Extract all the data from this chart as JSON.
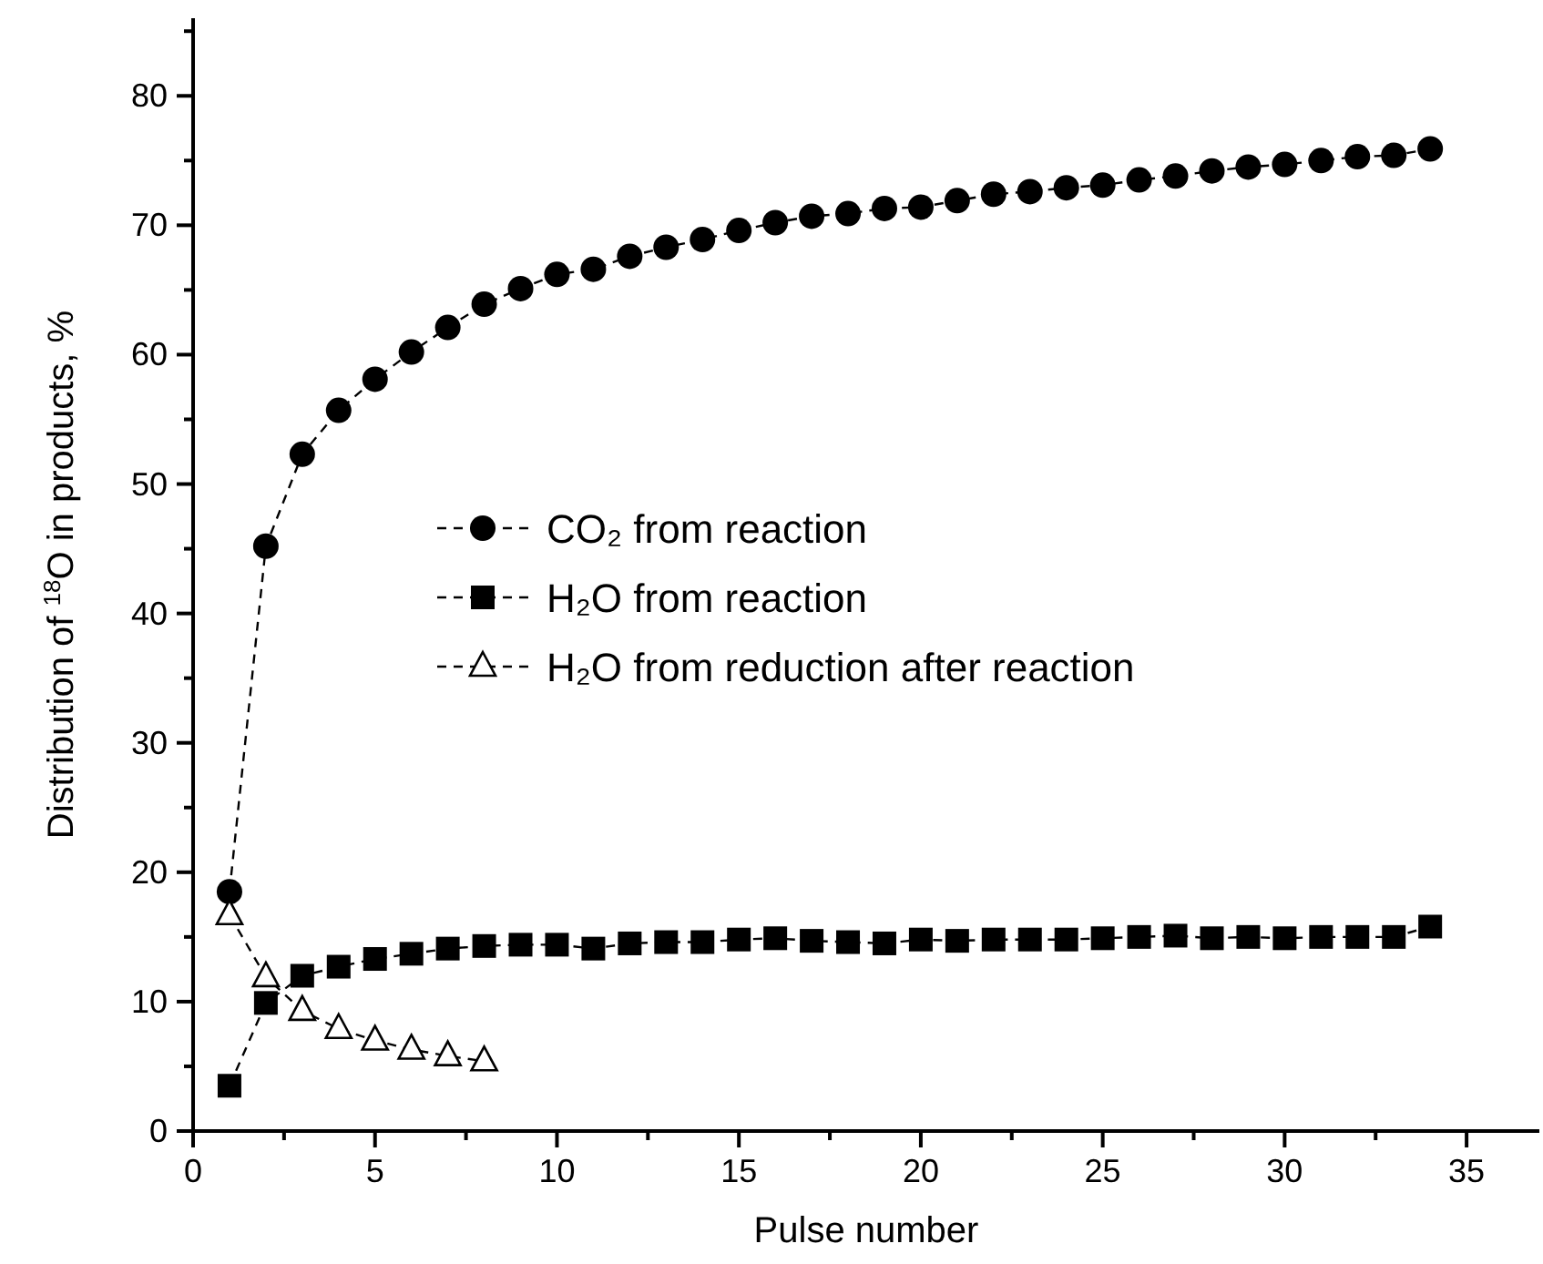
{
  "chart_data": {
    "type": "line",
    "xlabel": "Pulse number",
    "ylabel": "Distribution of $^{18}$O in products, %",
    "xlim": [
      0,
      37
    ],
    "xticks": [
      0,
      {
        "value": 2.5,
        "label": null
      },
      5,
      {
        "value": 7.5,
        "label": null
      },
      10,
      {
        "value": 12.5,
        "label": null
      },
      15,
      {
        "value": 17.5,
        "label": null
      },
      20,
      {
        "value": 22.5,
        "label": null
      },
      25,
      {
        "value": 27.5,
        "label": null
      },
      30,
      {
        "value": 32.5,
        "label": null
      },
      35
    ],
    "ylim": [
      0,
      86
    ],
    "yticks": [
      0,
      {
        "value": 5,
        "label": null
      },
      10,
      {
        "value": 15,
        "label": null
      },
      20,
      {
        "value": 25,
        "label": null
      },
      30,
      {
        "value": 35,
        "label": null
      },
      40,
      {
        "value": 45,
        "label": null
      },
      50,
      {
        "value": 55,
        "label": null
      },
      60,
      {
        "value": 65,
        "label": null
      },
      70,
      {
        "value": 75,
        "label": null
      },
      80,
      {
        "value": 85,
        "label": null
      }
    ],
    "grid": false,
    "legend": "center",
    "line_style": "dashed",
    "series": [
      {
        "name": "CO₂ from reaction",
        "color": "#000000",
        "marker": "circle",
        "x": [
          1,
          2,
          3,
          4,
          5,
          6,
          7,
          8,
          9,
          10,
          11,
          12,
          13,
          14,
          15,
          16,
          17,
          18,
          19,
          20,
          21,
          22,
          23,
          24,
          25,
          26,
          27,
          28,
          29,
          30,
          31,
          32,
          33,
          34
        ],
        "values": [
          18.5,
          45.2,
          52.3,
          55.7,
          58.1,
          60.2,
          62.1,
          63.9,
          65.1,
          66.2,
          66.6,
          67.6,
          68.3,
          68.9,
          69.6,
          70.2,
          70.7,
          70.9,
          71.3,
          71.4,
          71.9,
          72.4,
          72.6,
          72.9,
          73.1,
          73.5,
          73.8,
          74.2,
          74.5,
          74.7,
          75.0,
          75.3,
          75.4,
          75.9
        ]
      },
      {
        "name": "H₂O from reaction",
        "color": "#000000",
        "marker": "square",
        "x": [
          1,
          2,
          3,
          4,
          5,
          6,
          7,
          8,
          9,
          10,
          11,
          12,
          13,
          14,
          15,
          16,
          17,
          18,
          19,
          20,
          21,
          22,
          23,
          24,
          25,
          26,
          27,
          28,
          29,
          30,
          31,
          32,
          33,
          34
        ],
        "values": [
          3.5,
          9.9,
          12.0,
          12.7,
          13.3,
          13.7,
          14.1,
          14.3,
          14.4,
          14.4,
          14.1,
          14.5,
          14.6,
          14.6,
          14.8,
          14.9,
          14.7,
          14.6,
          14.5,
          14.8,
          14.7,
          14.8,
          14.8,
          14.8,
          14.9,
          15.0,
          15.1,
          14.9,
          15.0,
          14.9,
          15.0,
          15.0,
          15.0,
          15.8
        ]
      },
      {
        "name": "H₂O from reduction after reaction",
        "color": "#000000",
        "marker": "triangle",
        "x": [
          1,
          2,
          3,
          4,
          5,
          6,
          7,
          8
        ],
        "values": [
          16.7,
          11.9,
          9.3,
          7.9,
          7.0,
          6.3,
          5.8,
          5.4
        ]
      }
    ]
  }
}
